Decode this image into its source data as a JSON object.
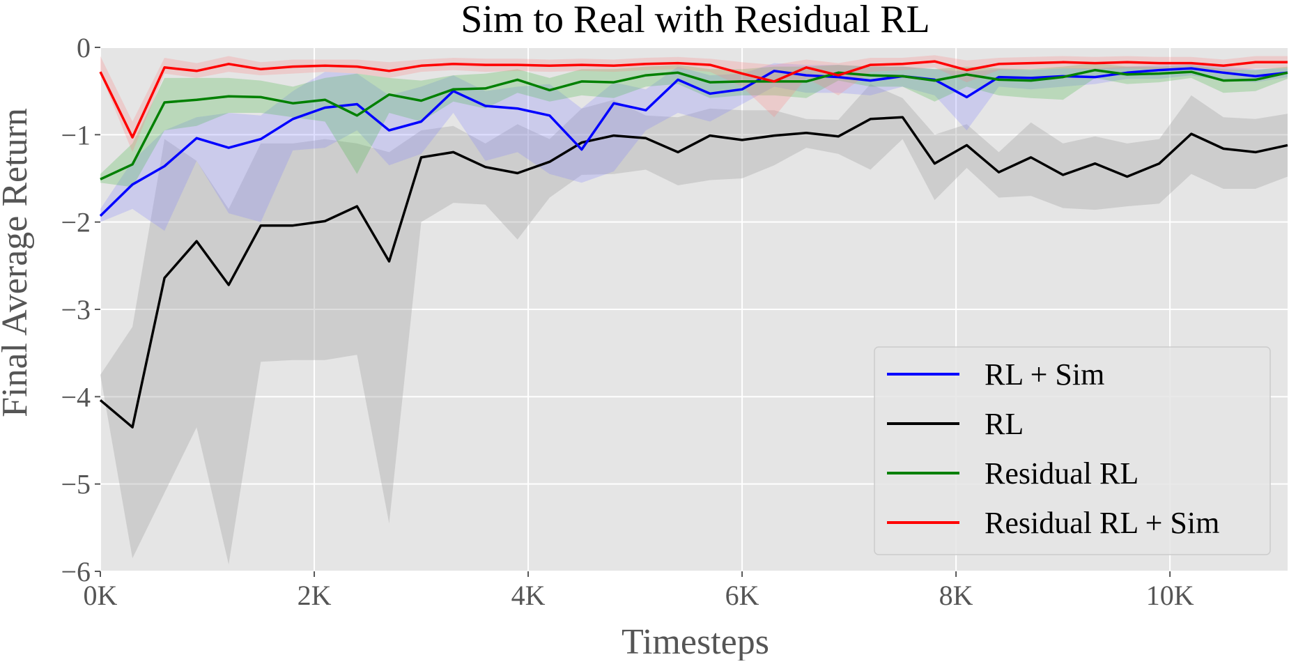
{
  "chart_data": {
    "type": "line",
    "title": "Sim to Real with Residual RL",
    "xlabel": "Timesteps",
    "ylabel": "Final Average Return",
    "xlim": [
      0,
      11100
    ],
    "ylim": [
      -6,
      0
    ],
    "xticks": [
      {
        "value": 0,
        "label": "0K"
      },
      {
        "value": 2000,
        "label": "2K"
      },
      {
        "value": 4000,
        "label": "4K"
      },
      {
        "value": 6000,
        "label": "6K"
      },
      {
        "value": 8000,
        "label": "8K"
      },
      {
        "value": 10000,
        "label": "10K"
      }
    ],
    "yticks": [
      {
        "value": 0,
        "label": "0"
      },
      {
        "value": -1,
        "label": "−1"
      },
      {
        "value": -2,
        "label": "−2"
      },
      {
        "value": -3,
        "label": "−3"
      },
      {
        "value": -4,
        "label": "−4"
      },
      {
        "value": -5,
        "label": "−5"
      },
      {
        "value": -6,
        "label": "−6"
      }
    ],
    "grid": true,
    "background": "#e5e5e5",
    "legend_position": "lower-right",
    "x": [
      0,
      300,
      600,
      900,
      1200,
      1500,
      1800,
      2100,
      2400,
      2700,
      3000,
      3300,
      3600,
      3900,
      4200,
      4500,
      4800,
      5100,
      5400,
      5700,
      6000,
      6300,
      6600,
      6900,
      7200,
      7500,
      7800,
      8100,
      8400,
      8700,
      9000,
      9300,
      9600,
      9900,
      10200,
      10500,
      10800,
      11100
    ],
    "series": [
      {
        "name": "RL",
        "color": "#000000",
        "band_color": "#a0a0a0",
        "band_opacity": 0.35,
        "values": [
          -4.04,
          -4.35,
          -2.64,
          -2.22,
          -2.72,
          -2.04,
          -2.04,
          -1.99,
          -1.82,
          -2.45,
          -1.26,
          -1.2,
          -1.37,
          -1.44,
          -1.31,
          -1.09,
          -1.01,
          -1.04,
          -1.2,
          -1.01,
          -1.06,
          -1.01,
          -0.98,
          -1.02,
          -0.82,
          -0.8,
          -1.33,
          -1.12,
          -1.43,
          -1.26,
          -1.46,
          -1.33,
          -1.48,
          -1.33,
          -0.99,
          -1.16,
          -1.2,
          -1.12
        ],
        "lower": [
          -3.75,
          -5.85,
          -5.1,
          -4.35,
          -5.92,
          -3.6,
          -3.58,
          -3.58,
          -3.52,
          -5.45,
          -2.0,
          -1.78,
          -1.8,
          -2.2,
          -1.72,
          -1.46,
          -1.45,
          -1.4,
          -1.58,
          -1.52,
          -1.5,
          -1.35,
          -1.15,
          -1.22,
          -1.4,
          -1.05,
          -1.75,
          -1.38,
          -1.72,
          -1.7,
          -1.84,
          -1.86,
          -1.82,
          -1.79,
          -1.45,
          -1.62,
          -1.62,
          -1.48
        ],
        "upper": [
          -3.75,
          -3.2,
          -1.05,
          -1.3,
          -1.85,
          -1.1,
          -1.1,
          -1.05,
          -1.1,
          -1.2,
          -0.95,
          -0.9,
          -1.1,
          -0.88,
          -1.05,
          -0.7,
          -0.6,
          -0.78,
          -0.8,
          -0.7,
          -0.72,
          -0.72,
          -0.82,
          -0.83,
          -0.42,
          -0.58,
          -1.0,
          -0.88,
          -1.2,
          -0.86,
          -1.1,
          -1.02,
          -1.1,
          -1.05,
          -0.55,
          -0.8,
          -0.82,
          -0.76
        ]
      },
      {
        "name": "RL + Sim",
        "color": "#0000ff",
        "band_color": "#8080ff",
        "band_opacity": 0.25,
        "values": [
          -1.93,
          -1.57,
          -1.36,
          -1.04,
          -1.15,
          -1.05,
          -0.82,
          -0.69,
          -0.65,
          -0.95,
          -0.85,
          -0.5,
          -0.67,
          -0.7,
          -0.78,
          -1.17,
          -0.64,
          -0.72,
          -0.37,
          -0.53,
          -0.48,
          -0.27,
          -0.32,
          -0.34,
          -0.38,
          -0.33,
          -0.37,
          -0.57,
          -0.34,
          -0.35,
          -0.33,
          -0.34,
          -0.29,
          -0.26,
          -0.24,
          -0.29,
          -0.33,
          -0.29
        ],
        "lower": [
          -2.0,
          -1.85,
          -2.1,
          -1.3,
          -1.9,
          -2.0,
          -1.18,
          -1.15,
          -0.95,
          -1.35,
          -1.22,
          -0.75,
          -1.3,
          -1.2,
          -1.45,
          -1.55,
          -1.42,
          -0.95,
          -0.75,
          -0.85,
          -0.65,
          -0.45,
          -0.52,
          -0.52,
          -0.55,
          -0.45,
          -0.55,
          -0.95,
          -0.45,
          -0.48,
          -0.45,
          -0.42,
          -0.36,
          -0.36,
          -0.32,
          -0.38,
          -0.4,
          -0.34
        ],
        "upper": [
          -1.85,
          -1.3,
          -0.95,
          -0.8,
          -0.75,
          -0.78,
          -0.5,
          -0.28,
          -0.3,
          -0.55,
          -0.45,
          -0.32,
          -0.5,
          -0.45,
          -0.42,
          -0.7,
          -0.4,
          -0.48,
          -0.22,
          -0.32,
          -0.3,
          -0.18,
          -0.2,
          -0.2,
          -0.22,
          -0.22,
          -0.25,
          -0.28,
          -0.25,
          -0.26,
          -0.24,
          -0.24,
          -0.22,
          -0.2,
          -0.18,
          -0.22,
          -0.25,
          -0.24
        ]
      },
      {
        "name": "Residual RL",
        "color": "#008000",
        "band_color": "#3cb43c",
        "band_opacity": 0.25,
        "values": [
          -1.51,
          -1.34,
          -0.63,
          -0.6,
          -0.56,
          -0.57,
          -0.64,
          -0.6,
          -0.78,
          -0.54,
          -0.61,
          -0.48,
          -0.47,
          -0.37,
          -0.49,
          -0.39,
          -0.4,
          -0.32,
          -0.29,
          -0.4,
          -0.39,
          -0.39,
          -0.39,
          -0.29,
          -0.32,
          -0.33,
          -0.38,
          -0.31,
          -0.37,
          -0.38,
          -0.34,
          -0.26,
          -0.31,
          -0.3,
          -0.28,
          -0.38,
          -0.37,
          -0.29
        ],
        "lower": [
          -1.55,
          -1.6,
          -0.95,
          -0.9,
          -0.75,
          -0.75,
          -0.8,
          -0.85,
          -1.45,
          -0.75,
          -0.85,
          -0.62,
          -0.7,
          -0.52,
          -0.62,
          -0.55,
          -0.58,
          -0.45,
          -0.42,
          -0.58,
          -0.55,
          -0.55,
          -0.58,
          -0.38,
          -0.45,
          -0.45,
          -0.62,
          -0.45,
          -0.55,
          -0.58,
          -0.6,
          -0.35,
          -0.42,
          -0.4,
          -0.35,
          -0.52,
          -0.5,
          -0.36
        ],
        "upper": [
          -1.45,
          -1.1,
          -0.35,
          -0.35,
          -0.35,
          -0.38,
          -0.45,
          -0.35,
          -0.3,
          -0.35,
          -0.38,
          -0.32,
          -0.3,
          -0.25,
          -0.35,
          -0.25,
          -0.25,
          -0.22,
          -0.2,
          -0.25,
          -0.25,
          -0.22,
          -0.22,
          -0.2,
          -0.22,
          -0.22,
          -0.25,
          -0.22,
          -0.24,
          -0.25,
          -0.22,
          -0.18,
          -0.22,
          -0.22,
          -0.2,
          -0.25,
          -0.26,
          -0.22
        ]
      },
      {
        "name": "Residual RL + Sim",
        "color": "#ff0000",
        "band_color": "#ff8080",
        "band_opacity": 0.25,
        "values": [
          -0.28,
          -1.03,
          -0.23,
          -0.27,
          -0.19,
          -0.25,
          -0.22,
          -0.21,
          -0.22,
          -0.27,
          -0.21,
          -0.19,
          -0.2,
          -0.2,
          -0.21,
          -0.2,
          -0.21,
          -0.19,
          -0.18,
          -0.2,
          -0.3,
          -0.39,
          -0.23,
          -0.32,
          -0.2,
          -0.19,
          -0.16,
          -0.26,
          -0.19,
          -0.18,
          -0.17,
          -0.18,
          -0.17,
          -0.18,
          -0.18,
          -0.21,
          -0.17,
          -0.17
        ],
        "lower": [
          -0.3,
          -1.2,
          -0.3,
          -0.35,
          -0.28,
          -0.32,
          -0.3,
          -0.28,
          -0.3,
          -0.35,
          -0.28,
          -0.26,
          -0.28,
          -0.27,
          -0.28,
          -0.27,
          -0.28,
          -0.26,
          -0.25,
          -0.28,
          -0.45,
          -0.8,
          -0.35,
          -0.55,
          -0.28,
          -0.26,
          -0.23,
          -0.4,
          -0.26,
          -0.25,
          -0.24,
          -0.25,
          -0.24,
          -0.25,
          -0.25,
          -0.29,
          -0.24,
          -0.24
        ],
        "upper": [
          -0.1,
          -0.85,
          -0.12,
          -0.18,
          -0.1,
          -0.17,
          -0.14,
          -0.14,
          -0.14,
          -0.17,
          -0.14,
          -0.12,
          -0.13,
          -0.13,
          -0.14,
          -0.13,
          -0.14,
          -0.12,
          -0.11,
          -0.13,
          -0.17,
          -0.2,
          -0.14,
          -0.18,
          -0.12,
          -0.12,
          -0.09,
          -0.15,
          -0.12,
          -0.11,
          -0.1,
          -0.11,
          -0.1,
          -0.11,
          -0.11,
          -0.14,
          -0.1,
          -0.1
        ]
      }
    ],
    "legend_order": [
      "RL + Sim",
      "RL",
      "Residual RL",
      "Residual RL + Sim"
    ]
  }
}
